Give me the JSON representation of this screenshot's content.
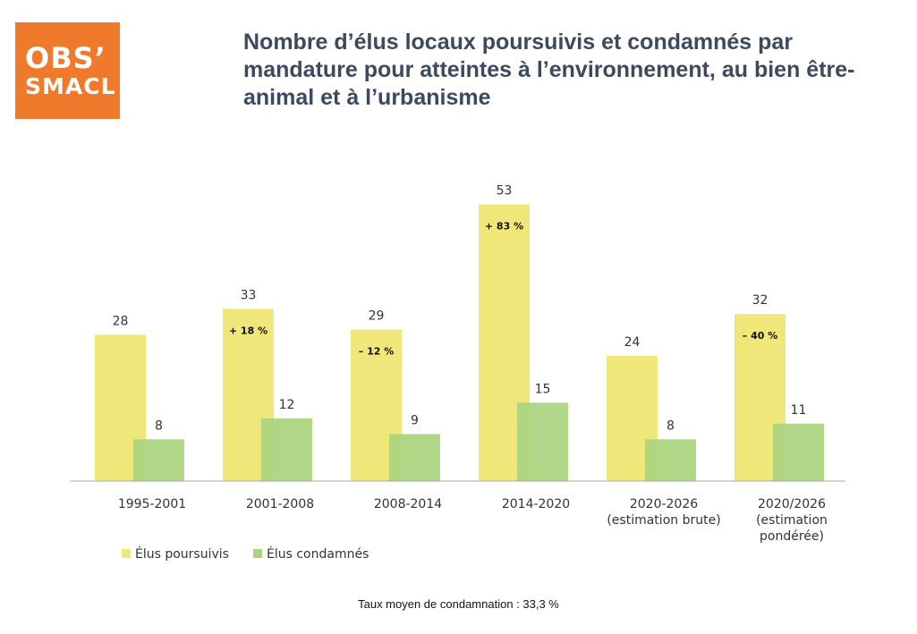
{
  "logo": {
    "line1": "OBS’",
    "line2": "SMACL"
  },
  "chart_data": {
    "type": "bar",
    "title": "Nombre d’élus locaux poursuivis et condamnés par mandature pour atteintes à l’environnement, au bien être-animal et à l’urbanisme",
    "categories": [
      [
        "1995-2001"
      ],
      [
        "2001-2008"
      ],
      [
        "2008-2014"
      ],
      [
        "2014-2020"
      ],
      [
        "2020-2026",
        "(estimation brute)"
      ],
      [
        "2020/2026",
        "(estimation",
        "pondérée)"
      ]
    ],
    "series": [
      {
        "name": "Élus poursuivis",
        "values": [
          28,
          33,
          29,
          53,
          24,
          32
        ],
        "color": "#efe77a"
      },
      {
        "name": "Élus condamnés",
        "values": [
          8,
          12,
          9,
          15,
          8,
          11
        ],
        "color": "#a9d47e"
      }
    ],
    "annotations": [
      "",
      "+ 18 %",
      "– 12 %",
      "+ 83 %",
      "",
      "– 40 %"
    ],
    "ylim": [
      0,
      60
    ],
    "grid": false,
    "legend_position": "bottom-left"
  },
  "footnote": "Taux moyen de condamnation : 33,3 %"
}
